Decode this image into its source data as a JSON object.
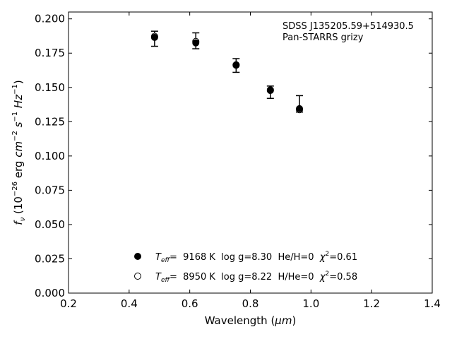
{
  "chart_data": {
    "type": "scatter",
    "annotations": [
      "SDSS J135205.59+514930.5",
      "Pan-STARRS grizy"
    ],
    "xlabel": {
      "main": "Wavelength (",
      "unit": "μm",
      "close": ")"
    },
    "ylabel": {
      "prefix": "f",
      "sub": "ν",
      "mid1": " (10",
      "exp1": "−26",
      "mid2": " erg ",
      "cm": "cm",
      "exp2": "−2",
      "s": " s",
      "exp3": "−1",
      "hz": " Hz",
      "exp4": "−1",
      "close": ")"
    },
    "xlim": [
      0.2,
      1.4
    ],
    "ylim": [
      0.0,
      0.205
    ],
    "xticks": [
      "0.2",
      "0.4",
      "0.6",
      "0.8",
      "1.0",
      "1.2",
      "1.4"
    ],
    "xtick_values": [
      0.2,
      0.4,
      0.6,
      0.8,
      1.0,
      1.2,
      1.4
    ],
    "yticks": [
      "0.000",
      "0.025",
      "0.050",
      "0.075",
      "0.100",
      "0.125",
      "0.150",
      "0.175",
      "0.200"
    ],
    "ytick_values": [
      0.0,
      0.025,
      0.05,
      0.075,
      0.1,
      0.125,
      0.15,
      0.175,
      0.2
    ],
    "grid": false,
    "legend_position": "bottom-center",
    "observed": [
      {
        "x": 0.484,
        "y": 0.1855,
        "yerr_low": 0.0055,
        "yerr_high": 0.0055
      },
      {
        "x": 0.62,
        "y": 0.184,
        "yerr_low": 0.0058,
        "yerr_high": 0.0058
      },
      {
        "x": 0.753,
        "y": 0.166,
        "yerr_low": 0.005,
        "yerr_high": 0.005
      },
      {
        "x": 0.866,
        "y": 0.1465,
        "yerr_low": 0.0045,
        "yerr_high": 0.0045
      },
      {
        "x": 0.962,
        "y": 0.138,
        "yerr_low": 0.006,
        "yerr_high": 0.006
      }
    ],
    "series": [
      {
        "style": "filled",
        "legend": {
          "teff_value": "=  9168 K  log g=8.30  He/H=0  ",
          "chi_value": "=0.61"
        },
        "values": [
          {
            "x": 0.484,
            "y": 0.1865
          },
          {
            "x": 0.62,
            "y": 0.1825
          },
          {
            "x": 0.753,
            "y": 0.1662
          },
          {
            "x": 0.866,
            "y": 0.1482
          },
          {
            "x": 0.962,
            "y": 0.1345
          }
        ]
      },
      {
        "style": "open",
        "legend": {
          "teff_value": "=  8950 K  log g=8.22  H/He=0  ",
          "chi_value": "=0.58"
        },
        "values": [
          {
            "x": 0.484,
            "y": 0.1872
          },
          {
            "x": 0.62,
            "y": 0.1835
          },
          {
            "x": 0.753,
            "y": 0.1665
          },
          {
            "x": 0.866,
            "y": 0.1478
          },
          {
            "x": 0.962,
            "y": 0.1338
          }
        ]
      }
    ],
    "legend_symbols": {
      "teff": "T",
      "teff_sub": "eff",
      "chi": "χ",
      "chi_exp": "2"
    }
  }
}
